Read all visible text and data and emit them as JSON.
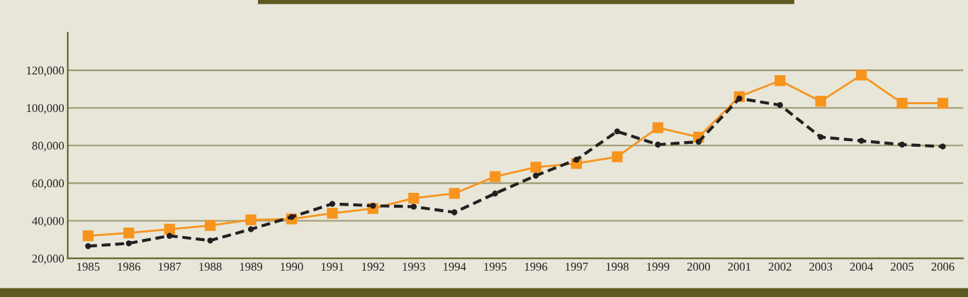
{
  "chart_data": {
    "type": "line",
    "categories": [
      "1985",
      "1986",
      "1987",
      "1988",
      "1989",
      "1990",
      "1991",
      "1992",
      "1993",
      "1994",
      "1995",
      "1996",
      "1997",
      "1998",
      "1999",
      "2000",
      "2001",
      "2002",
      "2003",
      "2004",
      "2005",
      "2006"
    ],
    "series": [
      {
        "color": "#f7941d",
        "marker": "square",
        "line_style": "solid",
        "values": [
          32000,
          33500,
          35500,
          37500,
          40500,
          41000,
          44000,
          46500,
          52000,
          54500,
          63500,
          68500,
          70500,
          74000,
          89500,
          84500,
          106000,
          114500,
          103500,
          117500,
          102500,
          102500
        ]
      },
      {
        "color": "#231f20",
        "marker": "circle",
        "line_style": "dashed",
        "values": [
          26500,
          28000,
          32000,
          29500,
          35500,
          42000,
          49000,
          48000,
          47500,
          44500,
          54500,
          64000,
          72500,
          87500,
          80500,
          82000,
          105000,
          101500,
          84500,
          82500,
          80500,
          79500
        ]
      }
    ],
    "ylim": [
      20000,
      140000
    ],
    "yticks": [
      {
        "value": 20000,
        "label": "20,000"
      },
      {
        "value": 40000,
        "label": "40,000"
      },
      {
        "value": 60000,
        "label": "60,000"
      },
      {
        "value": 80000,
        "label": "80,000"
      },
      {
        "value": 100000,
        "label": "100,000"
      },
      {
        "value": 120000,
        "label": "120,000"
      }
    ],
    "grid": "y",
    "legend": false
  }
}
